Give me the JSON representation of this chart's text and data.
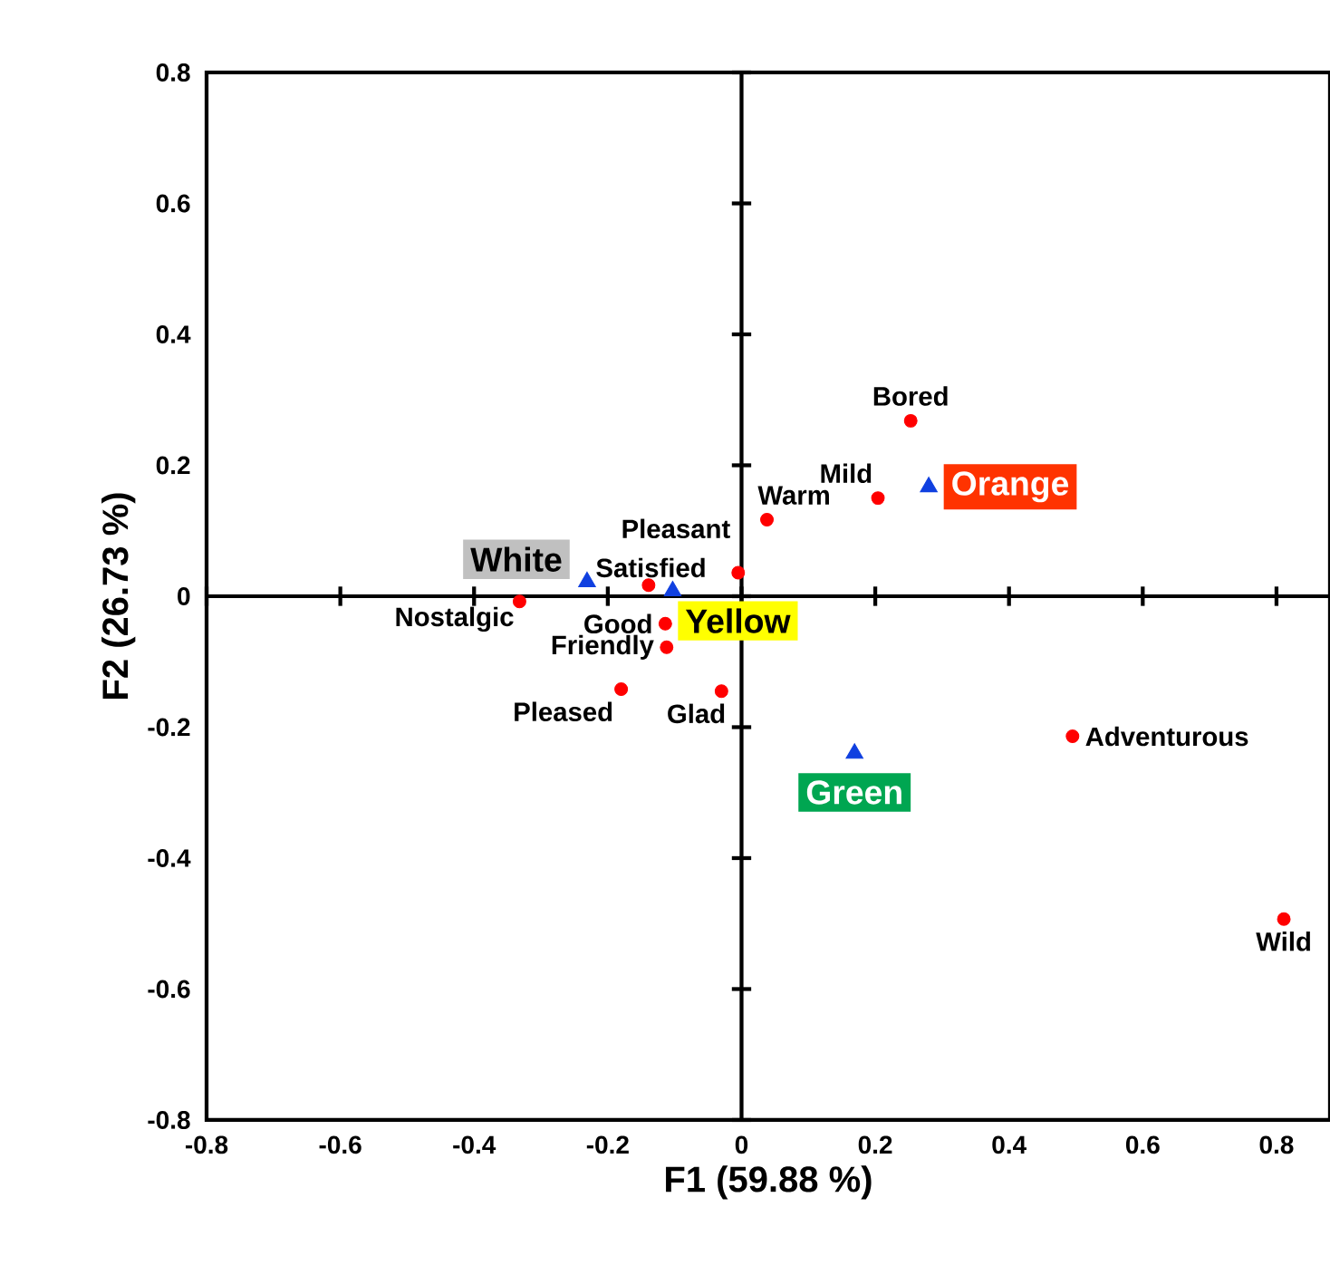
{
  "chart_data": {
    "type": "scatter",
    "xlabel": "F1 (59.88 %)",
    "ylabel": "F2 (26.73 %)",
    "xlim": [
      -0.8,
      0.88
    ],
    "ylim": [
      -0.8,
      0.8
    ],
    "xticks": [
      -0.8,
      -0.6,
      -0.4,
      -0.2,
      0,
      0.2,
      0.4,
      0.6,
      0.8
    ],
    "yticks": [
      -0.8,
      -0.6,
      -0.4,
      -0.2,
      0,
      0.2,
      0.4,
      0.6,
      0.8
    ],
    "series": [
      {
        "name": "Bored",
        "color": "#ff0000",
        "marker": "circle",
        "x": [
          0.253
        ],
        "values": [
          0.268
        ]
      },
      {
        "name": "Mild",
        "color": "#ff0000",
        "marker": "circle",
        "x": [
          0.204
        ],
        "values": [
          0.15
        ]
      },
      {
        "name": "Warm",
        "color": "#ff0000",
        "marker": "circle",
        "x": [
          0.038
        ],
        "values": [
          0.117
        ]
      },
      {
        "name": "Pleasant",
        "color": "#ff0000",
        "marker": "circle",
        "x": [
          -0.005
        ],
        "values": [
          0.036
        ]
      },
      {
        "name": "Satisfied",
        "color": "#ff0000",
        "marker": "circle",
        "x": [
          -0.139
        ],
        "values": [
          0.017
        ]
      },
      {
        "name": "Nostalgic",
        "color": "#ff0000",
        "marker": "circle",
        "x": [
          -0.332
        ],
        "values": [
          -0.008
        ]
      },
      {
        "name": "Good",
        "color": "#ff0000",
        "marker": "circle",
        "x": [
          -0.114
        ],
        "values": [
          -0.042
        ]
      },
      {
        "name": "Friendly",
        "color": "#ff0000",
        "marker": "circle",
        "x": [
          -0.112
        ],
        "values": [
          -0.078
        ]
      },
      {
        "name": "Pleased",
        "color": "#ff0000",
        "marker": "circle",
        "x": [
          -0.18
        ],
        "values": [
          -0.142
        ]
      },
      {
        "name": "Glad",
        "color": "#ff0000",
        "marker": "circle",
        "x": [
          -0.03
        ],
        "values": [
          -0.145
        ]
      },
      {
        "name": "Adventurous",
        "color": "#ff0000",
        "marker": "circle",
        "x": [
          0.495
        ],
        "values": [
          -0.214
        ]
      },
      {
        "name": "Wild",
        "color": "#ff0000",
        "marker": "circle",
        "x": [
          0.811
        ],
        "values": [
          -0.493
        ]
      },
      {
        "name": "White",
        "color": "#1040e0",
        "marker": "triangle",
        "x": [
          -0.231
        ],
        "values": [
          0.022
        ]
      },
      {
        "name": "Yellow",
        "color": "#1040e0",
        "marker": "triangle",
        "x": [
          -0.103
        ],
        "values": [
          0.008
        ]
      },
      {
        "name": "Orange",
        "color": "#1040e0",
        "marker": "triangle",
        "x": [
          0.28
        ],
        "values": [
          0.167
        ]
      },
      {
        "name": "Green",
        "color": "#1040e0",
        "marker": "triangle",
        "x": [
          0.169
        ],
        "values": [
          -0.24
        ]
      }
    ]
  }
}
